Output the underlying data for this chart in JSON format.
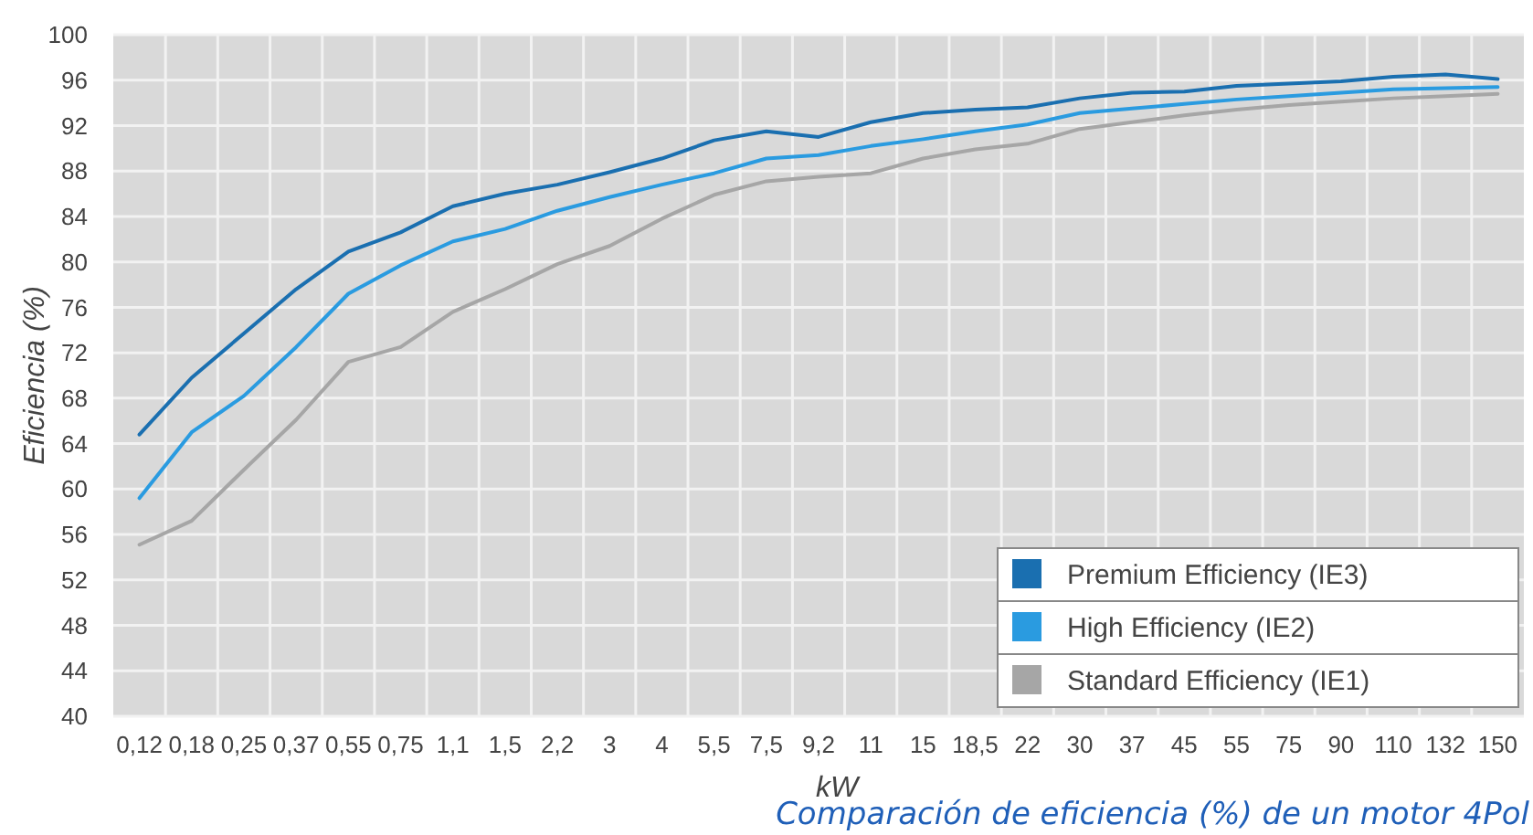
{
  "chart_data": {
    "type": "line",
    "xlabel": "kW",
    "ylabel": "Eficiencia (%)",
    "categories": [
      "0,12",
      "0,18",
      "0,25",
      "0,37",
      "0,55",
      "0,75",
      "1,1",
      "1,5",
      "2,2",
      "3",
      "4",
      "5,5",
      "7,5",
      "9,2",
      "11",
      "15",
      "18,5",
      "22",
      "30",
      "37",
      "45",
      "55",
      "75",
      "90",
      "110",
      "132",
      "150"
    ],
    "series": [
      {
        "name": "Premium Efficiency (IE3)",
        "color": "#1a6fb0",
        "values": [
          64.8,
          69.8,
          73.7,
          77.6,
          80.9,
          82.6,
          84.9,
          86.0,
          86.8,
          87.9,
          89.1,
          90.7,
          91.5,
          91.0,
          92.3,
          93.1,
          93.4,
          93.6,
          94.4,
          94.9,
          95.0,
          95.5,
          95.7,
          95.9,
          96.3,
          96.5,
          96.1
        ]
      },
      {
        "name": "High Efficiency (IE2)",
        "color": "#2a9be0",
        "values": [
          59.2,
          65.0,
          68.2,
          72.5,
          77.2,
          79.7,
          81.8,
          82.9,
          84.5,
          85.7,
          86.8,
          87.8,
          89.1,
          89.4,
          90.2,
          90.8,
          91.5,
          92.1,
          93.1,
          93.5,
          93.9,
          94.3,
          94.6,
          94.9,
          95.2,
          95.3,
          95.4
        ]
      },
      {
        "name": "Standard Efficiency (IE1)",
        "color": "#a6a6a6",
        "values": [
          55.1,
          57.2,
          61.7,
          66.1,
          71.2,
          72.5,
          75.6,
          77.6,
          79.8,
          81.4,
          83.8,
          85.9,
          87.1,
          87.5,
          87.8,
          89.1,
          89.9,
          90.4,
          91.7,
          92.3,
          92.9,
          93.4,
          93.8,
          94.1,
          94.4,
          94.6,
          94.8
        ]
      }
    ],
    "ylim": [
      40,
      100
    ],
    "yticks": [
      40,
      44,
      48,
      52,
      56,
      60,
      64,
      68,
      72,
      76,
      80,
      84,
      88,
      92,
      96,
      100
    ],
    "grid": true,
    "legend": "bottom right",
    "marker": "none",
    "line_style": "solid",
    "annotations": [
      "Comparación de eficiencia (%) de un motor 4Pol"
    ]
  }
}
